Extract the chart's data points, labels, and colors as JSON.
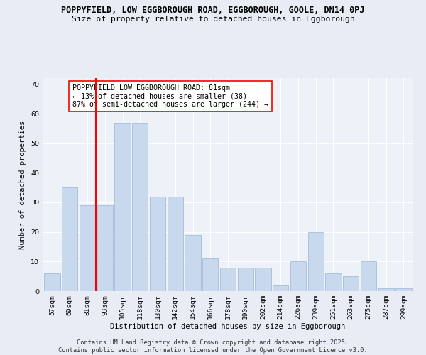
{
  "title_line1": "POPPYFIELD, LOW EGGBOROUGH ROAD, EGGBOROUGH, GOOLE, DN14 0PJ",
  "title_line2": "Size of property relative to detached houses in Eggborough",
  "xlabel": "Distribution of detached houses by size in Eggborough",
  "ylabel": "Number of detached properties",
  "categories": [
    "57sqm",
    "69sqm",
    "81sqm",
    "93sqm",
    "105sqm",
    "118sqm",
    "130sqm",
    "142sqm",
    "154sqm",
    "166sqm",
    "178sqm",
    "190sqm",
    "202sqm",
    "214sqm",
    "226sqm",
    "239sqm",
    "251sqm",
    "263sqm",
    "275sqm",
    "287sqm",
    "299sqm"
  ],
  "values": [
    6,
    35,
    29,
    29,
    57,
    57,
    32,
    32,
    19,
    11,
    8,
    8,
    8,
    2,
    10,
    20,
    6,
    5,
    10,
    1,
    1
  ],
  "bar_color": "#c8d9ee",
  "bar_edge_color": "#9ab5d4",
  "red_line_x": 2.5,
  "annotation_text": "POPPYFIELD LOW EGGBOROUGH ROAD: 81sqm\n← 13% of detached houses are smaller (38)\n87% of semi-detached houses are larger (244) →",
  "ylim": [
    0,
    72
  ],
  "yticks": [
    0,
    10,
    20,
    30,
    40,
    50,
    60,
    70
  ],
  "bg_color": "#e8edf5",
  "plot_bg_color": "#edf1f8",
  "grid_color": "#ffffff",
  "footer_line1": "Contains HM Land Registry data © Crown copyright and database right 2025.",
  "footer_line2": "Contains public sector information licensed under the Open Government Licence v3.0.",
  "title_fontsize": 8.5,
  "subtitle_fontsize": 8.2,
  "axis_label_fontsize": 7.5,
  "tick_fontsize": 6.8,
  "annotation_fontsize": 7.2,
  "footer_fontsize": 6.2
}
